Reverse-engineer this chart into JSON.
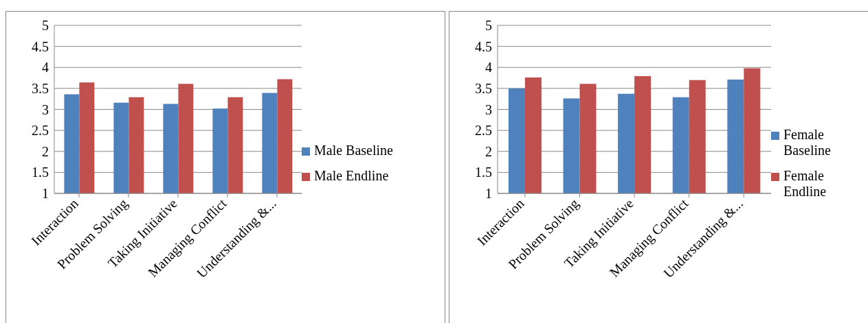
{
  "chart_data": [
    {
      "type": "bar",
      "categories": [
        "Interaction",
        "Problem Solving",
        "Taking Initiative",
        "Managing Conflict",
        "Understanding &..."
      ],
      "series": [
        {
          "name": "Male Baseline",
          "color": "#4f81bd",
          "values": [
            3.36,
            3.16,
            3.13,
            3.02,
            3.39
          ]
        },
        {
          "name": "Male Endline",
          "color": "#c0504d",
          "values": [
            3.64,
            3.29,
            3.61,
            3.29,
            3.72
          ]
        }
      ],
      "ylim": [
        1,
        5
      ],
      "yticks": [
        1,
        1.5,
        2,
        2.5,
        3,
        3.5,
        4,
        4.5,
        5
      ],
      "grid": "y",
      "legend": "right"
    },
    {
      "type": "bar",
      "categories": [
        "Interaction",
        "Problem Solving",
        "Taking Initiative",
        "Managing Conflict",
        "Understanding &..."
      ],
      "series": [
        {
          "name": "Female Baseline",
          "color": "#4f81bd",
          "values": [
            3.5,
            3.26,
            3.37,
            3.29,
            3.71
          ]
        },
        {
          "name": "Female Endline",
          "color": "#c0504d",
          "values": [
            3.76,
            3.61,
            3.79,
            3.7,
            3.98
          ]
        }
      ],
      "ylim": [
        1,
        5
      ],
      "yticks": [
        1,
        1.5,
        2,
        2.5,
        3,
        3.5,
        4,
        4.5,
        5
      ],
      "grid": "y",
      "legend": "right"
    }
  ]
}
